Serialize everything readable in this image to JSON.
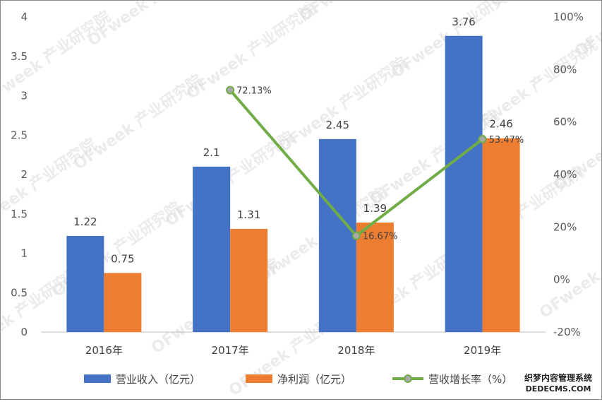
{
  "chart_data": {
    "type": "bar",
    "categories": [
      "2016年",
      "2017年",
      "2018年",
      "2019年"
    ],
    "series": [
      {
        "name": "营业收入（亿元）",
        "type": "bar",
        "axis": "left",
        "color": "#4472C4",
        "values": [
          1.22,
          2.1,
          2.45,
          3.76
        ],
        "labels": [
          "1.22",
          "2.1",
          "2.45",
          "3.76"
        ]
      },
      {
        "name": "净利润（亿元）",
        "type": "bar",
        "axis": "left",
        "color": "#ED7D31",
        "values": [
          0.75,
          1.31,
          1.39,
          2.46
        ],
        "labels": [
          "0.75",
          "1.31",
          "1.39",
          "2.46"
        ]
      },
      {
        "name": "营收增长率（%）",
        "type": "line",
        "axis": "right",
        "color": "#70AD47",
        "values": [
          null,
          72.13,
          16.67,
          53.47
        ],
        "labels": [
          "",
          "72.13%",
          "16.67%",
          "53.47%"
        ]
      }
    ],
    "ylim_left": [
      0,
      4
    ],
    "yticks_left": [
      "0",
      "0.5",
      "1",
      "1.5",
      "2",
      "2.5",
      "3",
      "3.5",
      "4"
    ],
    "ylim_right": [
      -20,
      100
    ],
    "yticks_right": [
      "-20%",
      "0%",
      "20%",
      "40%",
      "60%",
      "80%",
      "100%"
    ],
    "grid": false,
    "legend_position": "bottom"
  },
  "watermark": {
    "text": "OFweek 产业研究院"
  },
  "corner_logo": {
    "line1": "织梦内容管理系统",
    "line2": "DEDECMS.COM"
  }
}
